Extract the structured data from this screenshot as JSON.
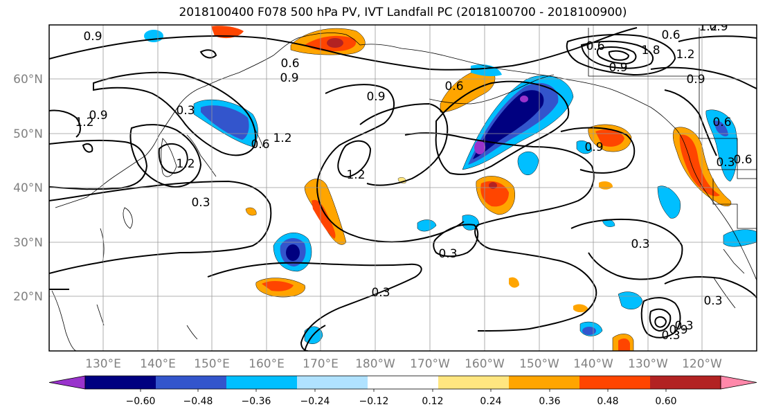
{
  "title": "2018100400 F078 500 hPa PV, IVT Landfall PC (2018100700 - 2018100900)",
  "lat_labels": [
    "60°N",
    "50°N",
    "40°N",
    "30°N",
    "20°N"
  ],
  "lon_labels": [
    "130°E",
    "140°E",
    "150°E",
    "160°E",
    "170°E",
    "180°W",
    "170°W",
    "160°W",
    "150°W",
    "140°W",
    "130°W",
    "120°W"
  ],
  "colorbar": {
    "ticks": [
      "−0.60",
      "−0.48",
      "−0.36",
      "−0.24",
      "−0.12",
      "0.12",
      "0.24",
      "0.36",
      "0.48",
      "0.60"
    ],
    "colors": [
      "#9933cc",
      "#000080",
      "#3355cc",
      "#00bfff",
      "#b0e2ff",
      "#ffffff",
      "#ffe680",
      "#ffa500",
      "#ff4500",
      "#b22222",
      "#ff88aa"
    ]
  },
  "contour_labels": [
    "0.9",
    "0.9",
    "0.3",
    "0.9",
    "1.2",
    "1.2",
    "0.6",
    "1.2",
    "0.3",
    "1.2",
    "0.9",
    "0.6",
    "0.9",
    "0.6",
    "0.3",
    "0.3",
    "0.3",
    "0.3",
    "0.3",
    "0.6",
    "1.8",
    "1.2",
    "0.9",
    "0.6",
    "0.6",
    "0.9",
    "0.3",
    "0.9",
    "0.3",
    "0.6",
    "0.9",
    "1.2"
  ]
}
